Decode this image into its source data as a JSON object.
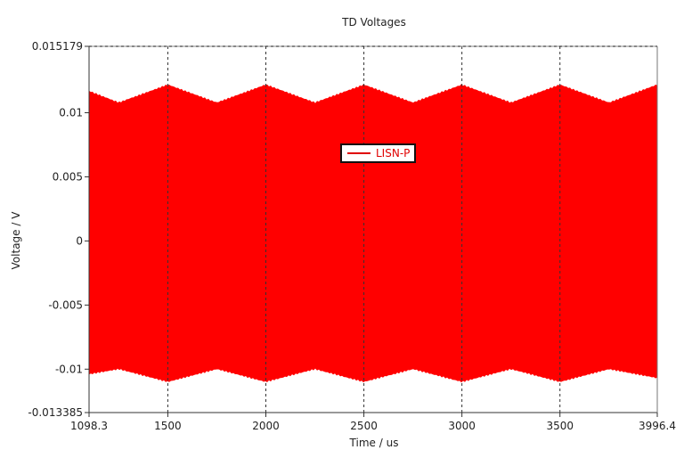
{
  "chart_data": {
    "type": "area",
    "title": "TD Voltages",
    "xlabel": "Time / us",
    "ylabel": "Voltage / V",
    "xlim": [
      1098.3,
      3996.4
    ],
    "ylim": [
      -0.013385,
      0.015179
    ],
    "x_ticks": [
      "1098.3",
      "1500",
      "2000",
      "2500",
      "3000",
      "3500",
      "3996.4"
    ],
    "y_ticks": [
      "0.015179",
      "0.01",
      "0.005",
      "0",
      "-0.005",
      "-0.01",
      "-0.013385"
    ],
    "grid": "dashed vertical lines at x ticks and at top of plot",
    "legend": {
      "position": "upper center",
      "entries": [
        "LISN-P"
      ]
    },
    "series": [
      {
        "name": "LISN-P",
        "color": "#ff0000",
        "description": "High-frequency oscillating voltage filling band; envelope shown",
        "upper_envelope": {
          "x": [
            1098.3,
            1250,
            1500,
            1750,
            2000,
            2250,
            2500,
            2750,
            3000,
            3250,
            3500,
            3750,
            3996.4
          ],
          "y": [
            0.0117,
            0.0108,
            0.0122,
            0.0108,
            0.0122,
            0.0108,
            0.0122,
            0.0108,
            0.0122,
            0.0108,
            0.0122,
            0.0108,
            0.0122
          ]
        },
        "lower_envelope": {
          "x": [
            1098.3,
            1250,
            1500,
            1750,
            2000,
            2250,
            2500,
            2750,
            3000,
            3250,
            3500,
            3750,
            3996.4
          ],
          "y": [
            -0.0104,
            -0.01,
            -0.011,
            -0.01,
            -0.011,
            -0.01,
            -0.011,
            -0.01,
            -0.011,
            -0.01,
            -0.011,
            -0.01,
            -0.0107
          ]
        }
      }
    ]
  },
  "legend_label": "LISN-P"
}
